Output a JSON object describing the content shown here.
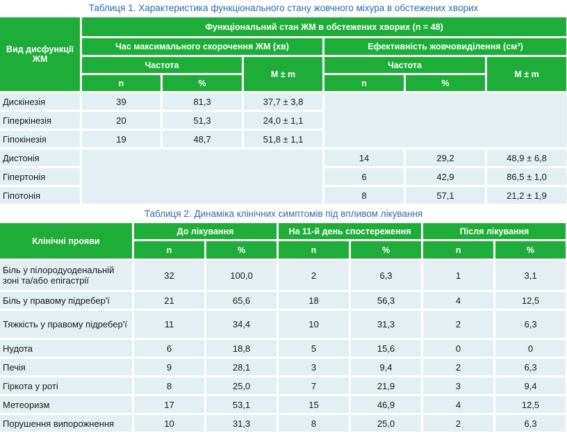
{
  "table1": {
    "caption": "Таблиця 1.  Характеристика функціонального стану жовчного міхура в обстежених хворих",
    "header_group": "Функціональний стан ЖМ в обстежених хворих (n = 48)",
    "header_row_label": "Вид дисфункції ЖМ",
    "section_a": "Час максимального скорочення ЖМ (хв)",
    "section_b": "Ефективність жовчовиділення (см³)",
    "freq_a": "Частота",
    "freq_b": "Частота",
    "mm_a": "M ± m",
    "mm_b": "M ± m",
    "n_a": "n",
    "pct_a": "%",
    "n_b": "n",
    "pct_b": "%",
    "rows_a": [
      {
        "label": "Дискінезія",
        "n": "39",
        "pct": "81,3",
        "mm": "37,7 ± 3,8"
      },
      {
        "label": "Гіперкінезія",
        "n": "20",
        "pct": "51,3",
        "mm": "24,0 ± 1,1"
      },
      {
        "label": "Гіпокінезія",
        "n": "19",
        "pct": "48,7",
        "mm": "51,8 ± 1,1"
      }
    ],
    "rows_b": [
      {
        "label": "Дистонія",
        "n": "14",
        "pct": "29,2",
        "mm": "48,9 ± 6,8"
      },
      {
        "label": "Гіпертонія",
        "n": "6",
        "pct": "42,9",
        "mm": "86,5 ± 1,0"
      },
      {
        "label": "Гіпотонія",
        "n": "8",
        "pct": "57,1",
        "mm": "21,2 ± 1,9"
      }
    ]
  },
  "table2": {
    "caption": "Таблиця 2.  Динаміка клінічних симптомів під впливом лікування",
    "header_row_label": "Клінічні прояви",
    "col_before": "До лікування",
    "col_day11": "На 11-й день спостереження",
    "col_after": "Після лікування",
    "n": "n",
    "pct": "%",
    "rows": [
      {
        "label": "Біль у пілородуоденальній зоні та/або епігастрії",
        "b_n": "32",
        "b_pct": "100,0",
        "d_n": "2",
        "d_pct": "6,3",
        "a_n": "1",
        "a_pct": "3,1"
      },
      {
        "label": "Біль у правому підребер'ї",
        "b_n": "21",
        "b_pct": "65,6",
        "d_n": "18",
        "d_pct": "56,3",
        "a_n": "4",
        "a_pct": "12,5"
      },
      {
        "label": "Тяжкість у правому підребер'ї",
        "b_n": "11",
        "b_pct": "34,4",
        "d_n": "10",
        "d_pct": "31,3",
        "a_n": "2",
        "a_pct": "6,3"
      },
      {
        "label": "Нудота",
        "b_n": "6",
        "b_pct": "18,8",
        "d_n": "5",
        "d_pct": "15,6",
        "a_n": "0",
        "a_pct": "0"
      },
      {
        "label": "Печія",
        "b_n": "9",
        "b_pct": "28,1",
        "d_n": "3",
        "d_pct": "9,4",
        "a_n": "2",
        "a_pct": "6,3"
      },
      {
        "label": "Гіркота у роті",
        "b_n": "8",
        "b_pct": "25,0",
        "d_n": "7",
        "d_pct": "21,9",
        "a_n": "3",
        "a_pct": "9,4"
      },
      {
        "label": "Метеоризм",
        "b_n": "17",
        "b_pct": "53,1",
        "d_n": "15",
        "d_pct": "46,9",
        "a_n": "4",
        "a_pct": "12,5"
      },
      {
        "label": "Порушення випорожнення",
        "b_n": "10",
        "b_pct": "31,3",
        "d_n": "8",
        "d_pct": "25,0",
        "a_n": "2",
        "a_pct": "6,3"
      }
    ]
  }
}
